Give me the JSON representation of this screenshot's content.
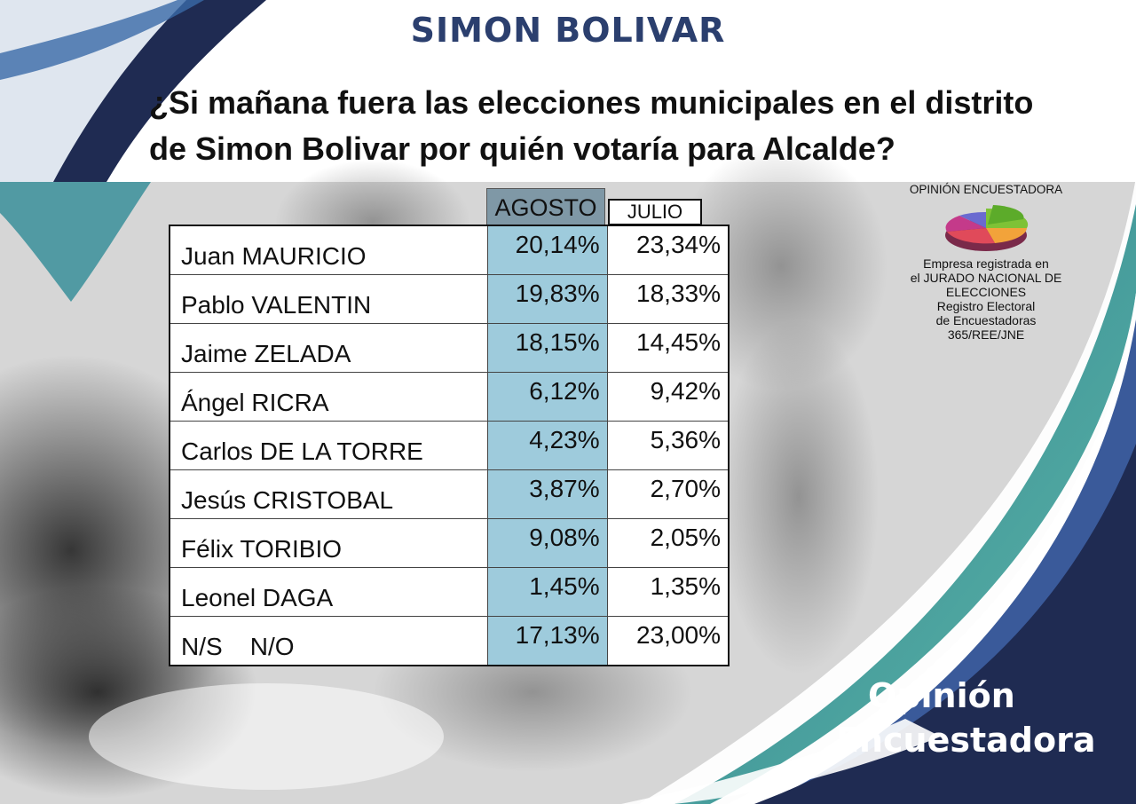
{
  "header": {
    "title": "SIMON BOLIVAR",
    "question_line1": "¿Si  mañana fuera las elecciones municipales en el distrito",
    "question_line2": "de Simon Bolivar por quién votaría para Alcalde?"
  },
  "table": {
    "columns": [
      "AGOSTO",
      "JULIO"
    ],
    "rows": [
      {
        "name": "Juan MAURICIO",
        "agosto": "20,14%",
        "julio": "23,34%"
      },
      {
        "name": "Pablo VALENTIN",
        "agosto": "19,83%",
        "julio": "18,33%"
      },
      {
        "name": "Jaime ZELADA",
        "agosto": "18,15%",
        "julio": "14,45%"
      },
      {
        "name": "Ángel RICRA",
        "agosto": "6,12%",
        "julio": "9,42%"
      },
      {
        "name": "Carlos DE LA TORRE",
        "agosto": "4,23%",
        "julio": "5,36%"
      },
      {
        "name": "Jesús CRISTOBAL",
        "agosto": "3,87%",
        "julio": "2,70%"
      },
      {
        "name": "Félix TORIBIO",
        "agosto": "9,08%",
        "julio": "2,05%"
      },
      {
        "name": "Leonel DAGA",
        "agosto": "1,45%",
        "julio": "1,35%"
      },
      {
        "name": "N/S    N/O",
        "agosto": "17,13%",
        "julio": "23,00%"
      }
    ]
  },
  "logo": {
    "name": "OPINIÓN ENCUESTADORA",
    "lines": [
      "Empresa registrada en",
      "el JURADO NACIONAL DE",
      "ELECCIONES",
      "Registro Electoral",
      "de Encuestadoras",
      "365/REE/JNE"
    ]
  },
  "brand": {
    "line1": "Opinión",
    "line2": "Encuestadora"
  },
  "colors": {
    "title": "#2b3f6e",
    "agosto_column": "#9ecbdc",
    "agosto_header": "#7f98a6",
    "navy": "#1f2b52",
    "teal": "#3a8f9a"
  }
}
